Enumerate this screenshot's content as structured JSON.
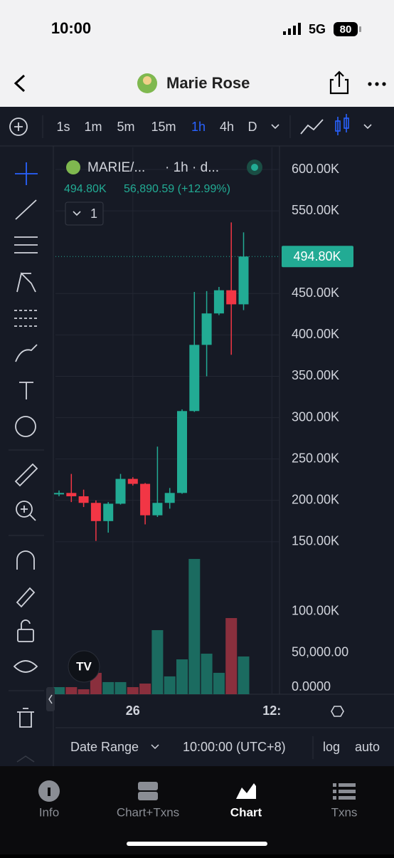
{
  "status_bar": {
    "time": "10:00",
    "network": "5G",
    "battery": "80"
  },
  "header": {
    "title": "Marie Rose"
  },
  "toolbar": {
    "intervals": [
      "1s",
      "1m",
      "5m",
      "15m",
      "1h",
      "4h",
      "D"
    ],
    "active_interval_index": 4
  },
  "legend": {
    "symbol": "MARIE/...",
    "interval": "· 1h · d...",
    "price": "494.80K",
    "change": "56,890.59 (+12.99%)",
    "indicator_count": "1"
  },
  "chart": {
    "type": "candlestick",
    "candles": [
      {
        "open": 208,
        "high": 212,
        "low": 205,
        "close": 209
      },
      {
        "open": 209,
        "high": 232,
        "low": 198,
        "close": 205
      },
      {
        "open": 205,
        "high": 213,
        "low": 192,
        "close": 197
      },
      {
        "open": 197,
        "high": 200,
        "low": 151,
        "close": 175
      },
      {
        "open": 175,
        "high": 198,
        "low": 161,
        "close": 196
      },
      {
        "open": 196,
        "high": 232,
        "low": 195,
        "close": 226
      },
      {
        "open": 226,
        "high": 228,
        "low": 218,
        "close": 220
      },
      {
        "open": 220,
        "high": 221,
        "low": 171,
        "close": 182
      },
      {
        "open": 182,
        "high": 265,
        "low": 180,
        "close": 197
      },
      {
        "open": 197,
        "high": 215,
        "low": 190,
        "close": 209
      },
      {
        "open": 209,
        "high": 310,
        "low": 208,
        "close": 308
      },
      {
        "open": 308,
        "high": 452,
        "low": 307,
        "close": 388
      },
      {
        "open": 388,
        "high": 453,
        "low": 350,
        "close": 426
      },
      {
        "open": 426,
        "high": 458,
        "low": 424,
        "close": 454
      },
      {
        "open": 454,
        "high": 536,
        "low": 376,
        "close": 437
      },
      {
        "open": 437,
        "high": 524,
        "low": 430,
        "close": 494.8
      }
    ],
    "volume": [
      8600,
      8600,
      6000,
      25900,
      14700,
      14700,
      8600,
      12900,
      77600,
      21600,
      42200,
      163800,
      49100,
      25900,
      92200,
      45700
    ],
    "ylim": [
      -34.3,
      626.7
    ],
    "yticks": [
      {
        "value": 600,
        "label": "600.00K"
      },
      {
        "value": 550,
        "label": "550.00K"
      },
      {
        "value": 450,
        "label": "450.00K"
      },
      {
        "value": 400,
        "label": "400.00K"
      },
      {
        "value": 350,
        "label": "350.00K"
      },
      {
        "value": 300,
        "label": "300.00K"
      },
      {
        "value": 250,
        "label": "250.00K"
      },
      {
        "value": 200,
        "label": "200.00K"
      },
      {
        "value": 150,
        "label": "150.00K"
      }
    ],
    "volume_lim": [
      0,
      662000
    ],
    "volume_ticks": [
      {
        "value": 100000,
        "label": "100.00K"
      },
      {
        "value": 50000,
        "label": "50,000.00"
      },
      {
        "value": 0,
        "label": "0.0000"
      }
    ],
    "last_price": {
      "value": 494.8,
      "label": "494.80K"
    },
    "xticks": [
      {
        "value": 6,
        "label": "26"
      },
      {
        "value": 17.3,
        "label": "12:"
      }
    ]
  },
  "bottom_bar": {
    "date_range": "Date Range",
    "timezone": "10:00:00 (UTC+8)",
    "log": "log",
    "auto": "auto"
  },
  "tabs": [
    "Info",
    "Chart+Txns",
    "Chart",
    "Txns"
  ],
  "active_tab_index": 2
}
